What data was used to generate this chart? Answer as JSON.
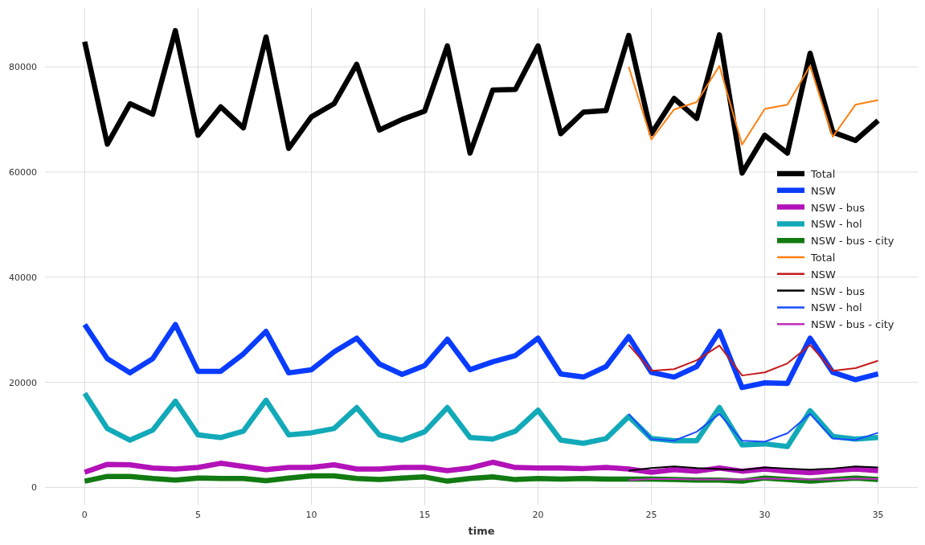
{
  "chart_data": {
    "type": "line",
    "xlabel": "time",
    "xlim": [
      -1.75,
      36.75
    ],
    "ylim": [
      -3300,
      91200
    ],
    "xticks": [
      0,
      5,
      10,
      15,
      20,
      25,
      30,
      35
    ],
    "yticks": [
      0,
      20000,
      40000,
      60000,
      80000
    ],
    "grid": true,
    "legend": "right",
    "x": [
      0,
      1,
      2,
      3,
      4,
      5,
      6,
      7,
      8,
      9,
      10,
      11,
      12,
      13,
      14,
      15,
      16,
      17,
      18,
      19,
      20,
      21,
      22,
      23,
      24,
      25,
      26,
      27,
      28,
      29,
      30,
      31,
      32,
      33,
      34,
      35
    ],
    "series": [
      {
        "name": "Total",
        "color": "#000000",
        "values": [
          84800,
          65300,
          73000,
          71000,
          86900,
          67000,
          72400,
          68400,
          85700,
          64500,
          70500,
          73000,
          80500,
          68000,
          70000,
          71600,
          84000,
          63600,
          75600,
          75700,
          84000,
          67300,
          71400,
          71700,
          86000,
          67300,
          74000,
          70200,
          86100,
          59800,
          67000,
          63600,
          82600,
          67600,
          66000,
          69800
        ]
      },
      {
        "name": "NSW",
        "color": "#0a3cff",
        "values": [
          31000,
          24500,
          21800,
          24500,
          31000,
          22100,
          22100,
          25400,
          29700,
          21800,
          22400,
          25800,
          28400,
          23500,
          21500,
          23200,
          28200,
          22400,
          23900,
          25100,
          28400,
          21600,
          21000,
          23000,
          28700,
          21900,
          21000,
          23000,
          29700,
          19000,
          19900,
          19800,
          28400,
          21900,
          20500,
          21600
        ]
      },
      {
        "name": "NSW - bus",
        "color": "#b212b8",
        "values": [
          2900,
          4400,
          4300,
          3700,
          3500,
          3800,
          4600,
          4000,
          3400,
          3800,
          3800,
          4300,
          3500,
          3500,
          3800,
          3800,
          3200,
          3700,
          4800,
          3800,
          3700,
          3700,
          3600,
          3800,
          3500,
          2900,
          3400,
          3100,
          3700,
          3100,
          3500,
          3100,
          2800,
          3200,
          3500,
          3200
        ]
      },
      {
        "name": "NSW - hol",
        "color": "#12a9b8",
        "values": [
          17900,
          11200,
          9000,
          10900,
          16400,
          10000,
          9500,
          10700,
          16600,
          10000,
          10400,
          11200,
          15200,
          10000,
          9000,
          10600,
          15200,
          9500,
          9200,
          10700,
          14700,
          9000,
          8400,
          9300,
          13500,
          9300,
          8900,
          8900,
          15200,
          8100,
          8300,
          7800,
          14600,
          9700,
          9200,
          9500
        ]
      },
      {
        "name": "NSW - bus - city",
        "color": "#117a11",
        "values": [
          1200,
          2100,
          2100,
          1700,
          1400,
          1800,
          1700,
          1700,
          1300,
          1800,
          2200,
          2200,
          1700,
          1500,
          1800,
          2000,
          1200,
          1700,
          2000,
          1500,
          1700,
          1600,
          1700,
          1600,
          1600,
          1600,
          1500,
          1400,
          1400,
          1200,
          1800,
          1500,
          1200,
          1500,
          1800,
          1500
        ]
      },
      {
        "name": "Total",
        "color": "#ff7f0e",
        "x": [
          24,
          25,
          26,
          27,
          28,
          29,
          30,
          31,
          32,
          33,
          34,
          35
        ],
        "values": [
          80000,
          66200,
          71900,
          73300,
          80200,
          65200,
          72000,
          72800,
          80200,
          66700,
          72800,
          73700
        ]
      },
      {
        "name": "NSW",
        "color": "#c41a1a",
        "x": [
          24,
          25,
          26,
          27,
          28,
          29,
          30,
          31,
          32,
          33,
          34,
          35
        ],
        "values": [
          27100,
          22200,
          22500,
          24200,
          27000,
          21300,
          21900,
          23600,
          27100,
          22200,
          22700,
          24100
        ]
      },
      {
        "name": "NSW - bus",
        "color": "#000000",
        "x": [
          24,
          25,
          26,
          27,
          28,
          29,
          30,
          31,
          32,
          33,
          34,
          35
        ],
        "values": [
          3200,
          3700,
          4000,
          3700,
          3500,
          3300,
          3800,
          3600,
          3400,
          3600,
          4000,
          3800
        ]
      },
      {
        "name": "NSW - hol",
        "color": "#1a4cff",
        "x": [
          24,
          25,
          26,
          27,
          28,
          29,
          30,
          31,
          32,
          33,
          34,
          35
        ],
        "values": [
          14000,
          9200,
          8900,
          10600,
          14000,
          8900,
          8700,
          10300,
          14000,
          9300,
          9000,
          10400
        ]
      },
      {
        "name": "NSW - bus - city",
        "color": "#bf2ec0",
        "x": [
          24,
          25,
          26,
          27,
          28,
          29,
          30,
          31,
          32,
          33,
          34,
          35
        ],
        "values": [
          1400,
          1600,
          1600,
          1500,
          1500,
          1500,
          1700,
          1600,
          1500,
          1500,
          1700,
          1600
        ]
      }
    ]
  }
}
